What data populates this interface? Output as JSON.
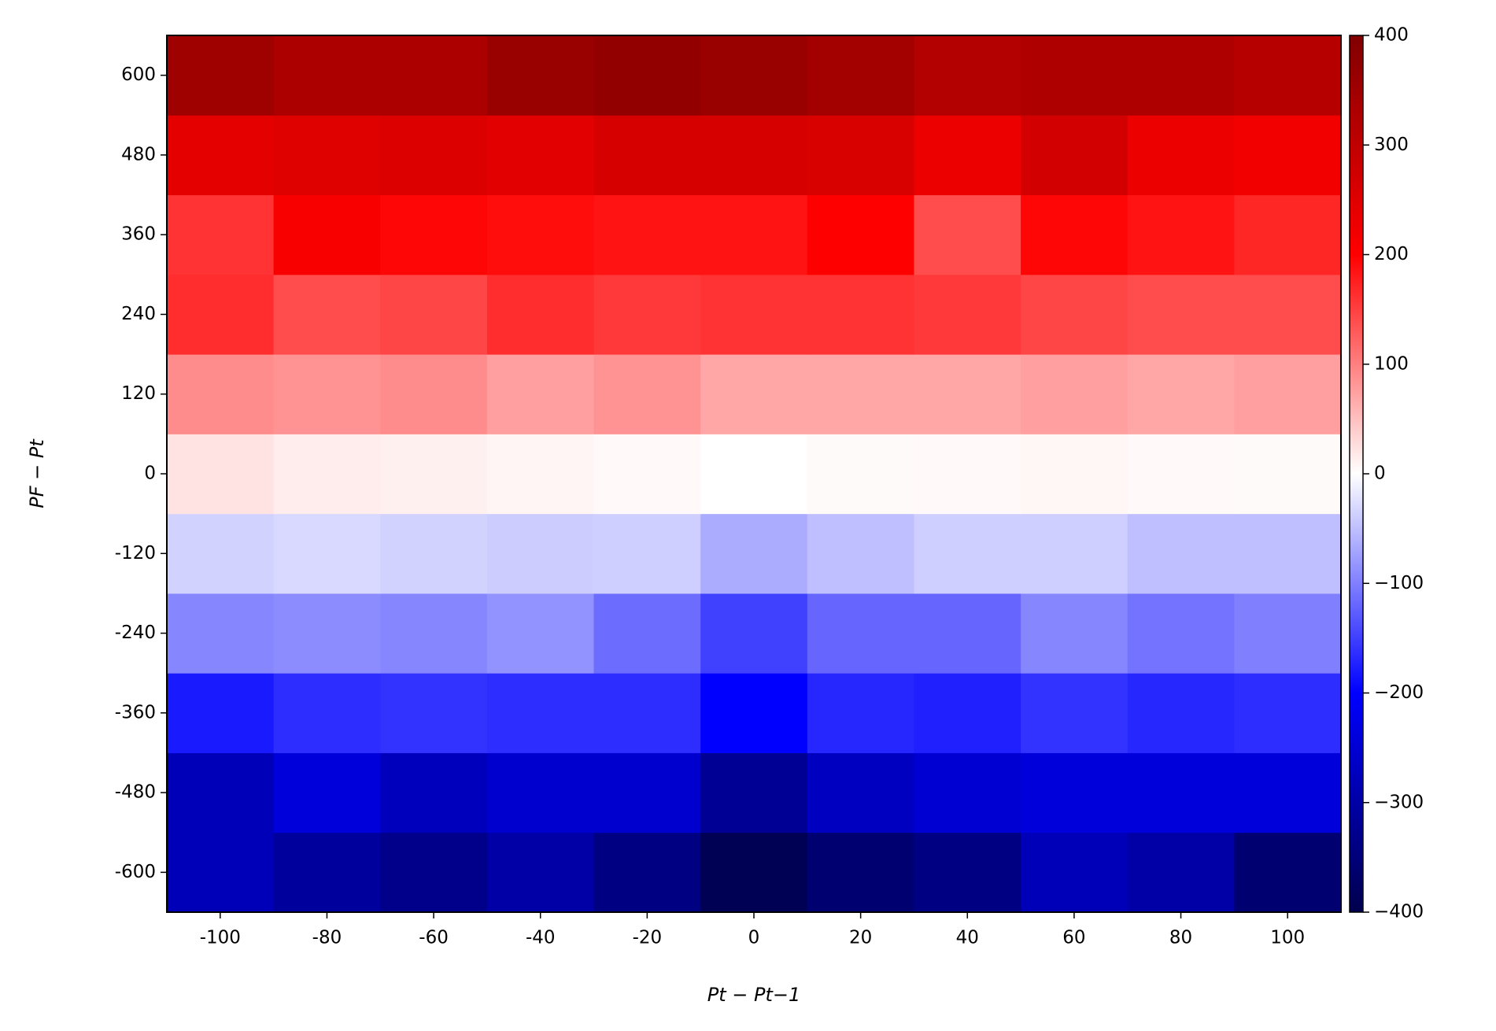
{
  "chart_data": {
    "type": "heatmap",
    "xlabel": "Pt − Pt−1",
    "ylabel": "PF − Pt",
    "x": [
      -100,
      -80,
      -60,
      -40,
      -20,
      0,
      20,
      40,
      60,
      80,
      100
    ],
    "y": [
      -600,
      -480,
      -360,
      -240,
      -120,
      0,
      120,
      240,
      360,
      480,
      600
    ],
    "z": [
      [
        -280,
        -310,
        -330,
        -300,
        -340,
        -390,
        -360,
        -340,
        -280,
        -300,
        -360
      ],
      [
        -280,
        -240,
        -275,
        -255,
        -255,
        -320,
        -270,
        -250,
        -240,
        -240,
        -240
      ],
      [
        -180,
        -165,
        -160,
        -165,
        -165,
        -200,
        -170,
        -175,
        -160,
        -170,
        -165
      ],
      [
        -95,
        -90,
        -95,
        -85,
        -115,
        -150,
        -120,
        -120,
        -95,
        -110,
        -100
      ],
      [
        -35,
        -30,
        -35,
        -40,
        -38,
        -65,
        -50,
        -38,
        -38,
        -50,
        -50
      ],
      [
        22,
        15,
        12,
        8,
        5,
        0,
        4,
        5,
        7,
        5,
        4
      ],
      [
        90,
        85,
        90,
        75,
        85,
        70,
        70,
        70,
        75,
        70,
        75
      ],
      [
        165,
        140,
        145,
        165,
        155,
        160,
        160,
        155,
        145,
        140,
        140
      ],
      [
        160,
        210,
        195,
        190,
        185,
        185,
        200,
        140,
        195,
        185,
        170
      ],
      [
        240,
        250,
        255,
        245,
        265,
        265,
        260,
        230,
        270,
        230,
        220
      ],
      [
        350,
        330,
        330,
        360,
        370,
        360,
        345,
        320,
        325,
        325,
        315
      ]
    ],
    "xlim": [
      -110,
      110
    ],
    "ylim": [
      -660,
      660
    ],
    "xticks": [
      -100,
      -80,
      -60,
      -40,
      -20,
      0,
      20,
      40,
      60,
      80,
      100
    ],
    "yticks": [
      -600,
      -480,
      -360,
      -240,
      -120,
      0,
      120,
      240,
      360,
      480,
      600
    ],
    "cmap": "seismic",
    "clim": [
      -400,
      400
    ],
    "cticks": [
      {
        "value": -400,
        "label": "−400"
      },
      {
        "value": -300,
        "label": "−300"
      },
      {
        "value": -200,
        "label": "−200"
      },
      {
        "value": -100,
        "label": "−100"
      },
      0,
      100,
      200,
      300,
      400
    ]
  }
}
